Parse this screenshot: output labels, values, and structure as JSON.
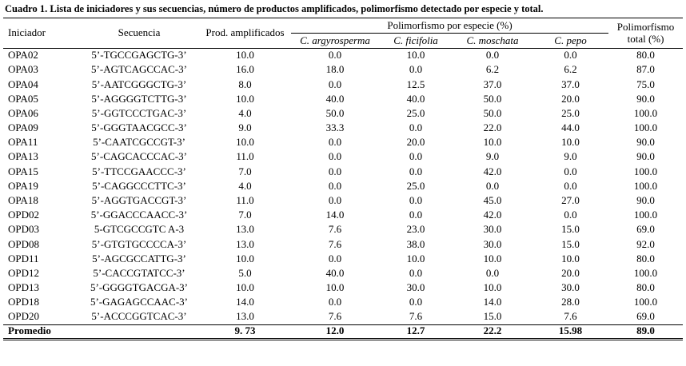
{
  "colors": {
    "text": "#000000",
    "background": "#ffffff",
    "rule": "#000000"
  },
  "title": "Cuadro 1. Lista de iniciadores y sus secuencias, número de productos amplificados, polimorfismo detectado por especie y total.",
  "table": {
    "headers": {
      "iniciador": "Iniciador",
      "secuencia": "Secuencia",
      "prod": "Prod. amplificados",
      "poli_especie": "Polimorfismo por especie (%)",
      "poli_total": "Polimorfismo total (%)",
      "species": [
        "C. argyrosperma",
        "C. ficifolia",
        "C. moschata",
        "C. pepo"
      ]
    },
    "rows": [
      [
        "OPA02",
        "5’-TGCCGAGCTG-3’",
        "10.0",
        "0.0",
        "10.0",
        "0.0",
        "0.0",
        "80.0"
      ],
      [
        "OPA03",
        "5’-AGTCAGCCAC-3’",
        "16.0",
        "18.0",
        "0.0",
        "6.2",
        "6.2",
        "87.0"
      ],
      [
        "OPA04",
        "5’-AATCGGGCTG-3’",
        "8.0",
        "0.0",
        "12.5",
        "37.0",
        "37.0",
        "75.0"
      ],
      [
        "OPA05",
        "5’-AGGGGTCTTG-3’",
        "10.0",
        "40.0",
        "40.0",
        "50.0",
        "20.0",
        "90.0"
      ],
      [
        "OPA06",
        "5’-GGTCCCTGAC-3’",
        "4.0",
        "50.0",
        "25.0",
        "50.0",
        "25.0",
        "100.0"
      ],
      [
        "OPA09",
        "5’-GGGTAACGCC-3’",
        "9.0",
        "33.3",
        "0.0",
        "22.0",
        "44.0",
        "100.0"
      ],
      [
        "OPA11",
        "5’-CAATCGCCGT-3’",
        "10.0",
        "0.0",
        "20.0",
        "10.0",
        "10.0",
        "90.0"
      ],
      [
        "OPA13",
        "5’-CAGCACCCAC-3’",
        "11.0",
        "0.0",
        "0.0",
        "9.0",
        "9.0",
        "90.0"
      ],
      [
        "OPA15",
        "5’-TTCCGAACCC-3’",
        "7.0",
        "0.0",
        "0.0",
        "42.0",
        "0.0",
        "100.0"
      ],
      [
        "OPA19",
        "5’-CAGGCCCTTC-3’",
        "4.0",
        "0.0",
        "25.0",
        "0.0",
        "0.0",
        "100.0"
      ],
      [
        "OPA18",
        "5’-AGGTGACCGT-3’",
        "11.0",
        "0.0",
        "0.0",
        "45.0",
        "27.0",
        "90.0"
      ],
      [
        "OPD02",
        "5’-GGACCCAACC-3’",
        "7.0",
        "14.0",
        "0.0",
        "42.0",
        "0.0",
        "100.0"
      ],
      [
        "OPD03",
        "5-GTCGCCGTC A-3",
        "13.0",
        "7.6",
        "23.0",
        "30.0",
        "15.0",
        "69.0"
      ],
      [
        "OPD08",
        "5’-GTGTGCCCCA-3’",
        "13.0",
        "7.6",
        "38.0",
        "30.0",
        "15.0",
        "92.0"
      ],
      [
        "OPD11",
        "5’-AGCGCCATTG-3’",
        "10.0",
        "0.0",
        "10.0",
        "10.0",
        "10.0",
        "80.0"
      ],
      [
        "OPD12",
        "5’-CACCGTATCC-3’",
        "5.0",
        "40.0",
        "0.0",
        "0.0",
        "20.0",
        "100.0"
      ],
      [
        "OPD13",
        "5’-GGGGTGACGA-3’",
        "10.0",
        "10.0",
        "30.0",
        "10.0",
        "30.0",
        "80.0"
      ],
      [
        "OPD18",
        "5’-GAGAGCCAAC-3’",
        "14.0",
        "0.0",
        "0.0",
        "14.0",
        "28.0",
        "100.0"
      ],
      [
        "OPD20",
        "5’-ACCCGGTCAC-3’",
        "13.0",
        "7.6",
        "7.6",
        "15.0",
        "7.6",
        "69.0"
      ]
    ],
    "footer": [
      "Promedio",
      "",
      "9. 73",
      "12.0",
      "12.7",
      "22.2",
      "15.98",
      "89.0"
    ]
  }
}
